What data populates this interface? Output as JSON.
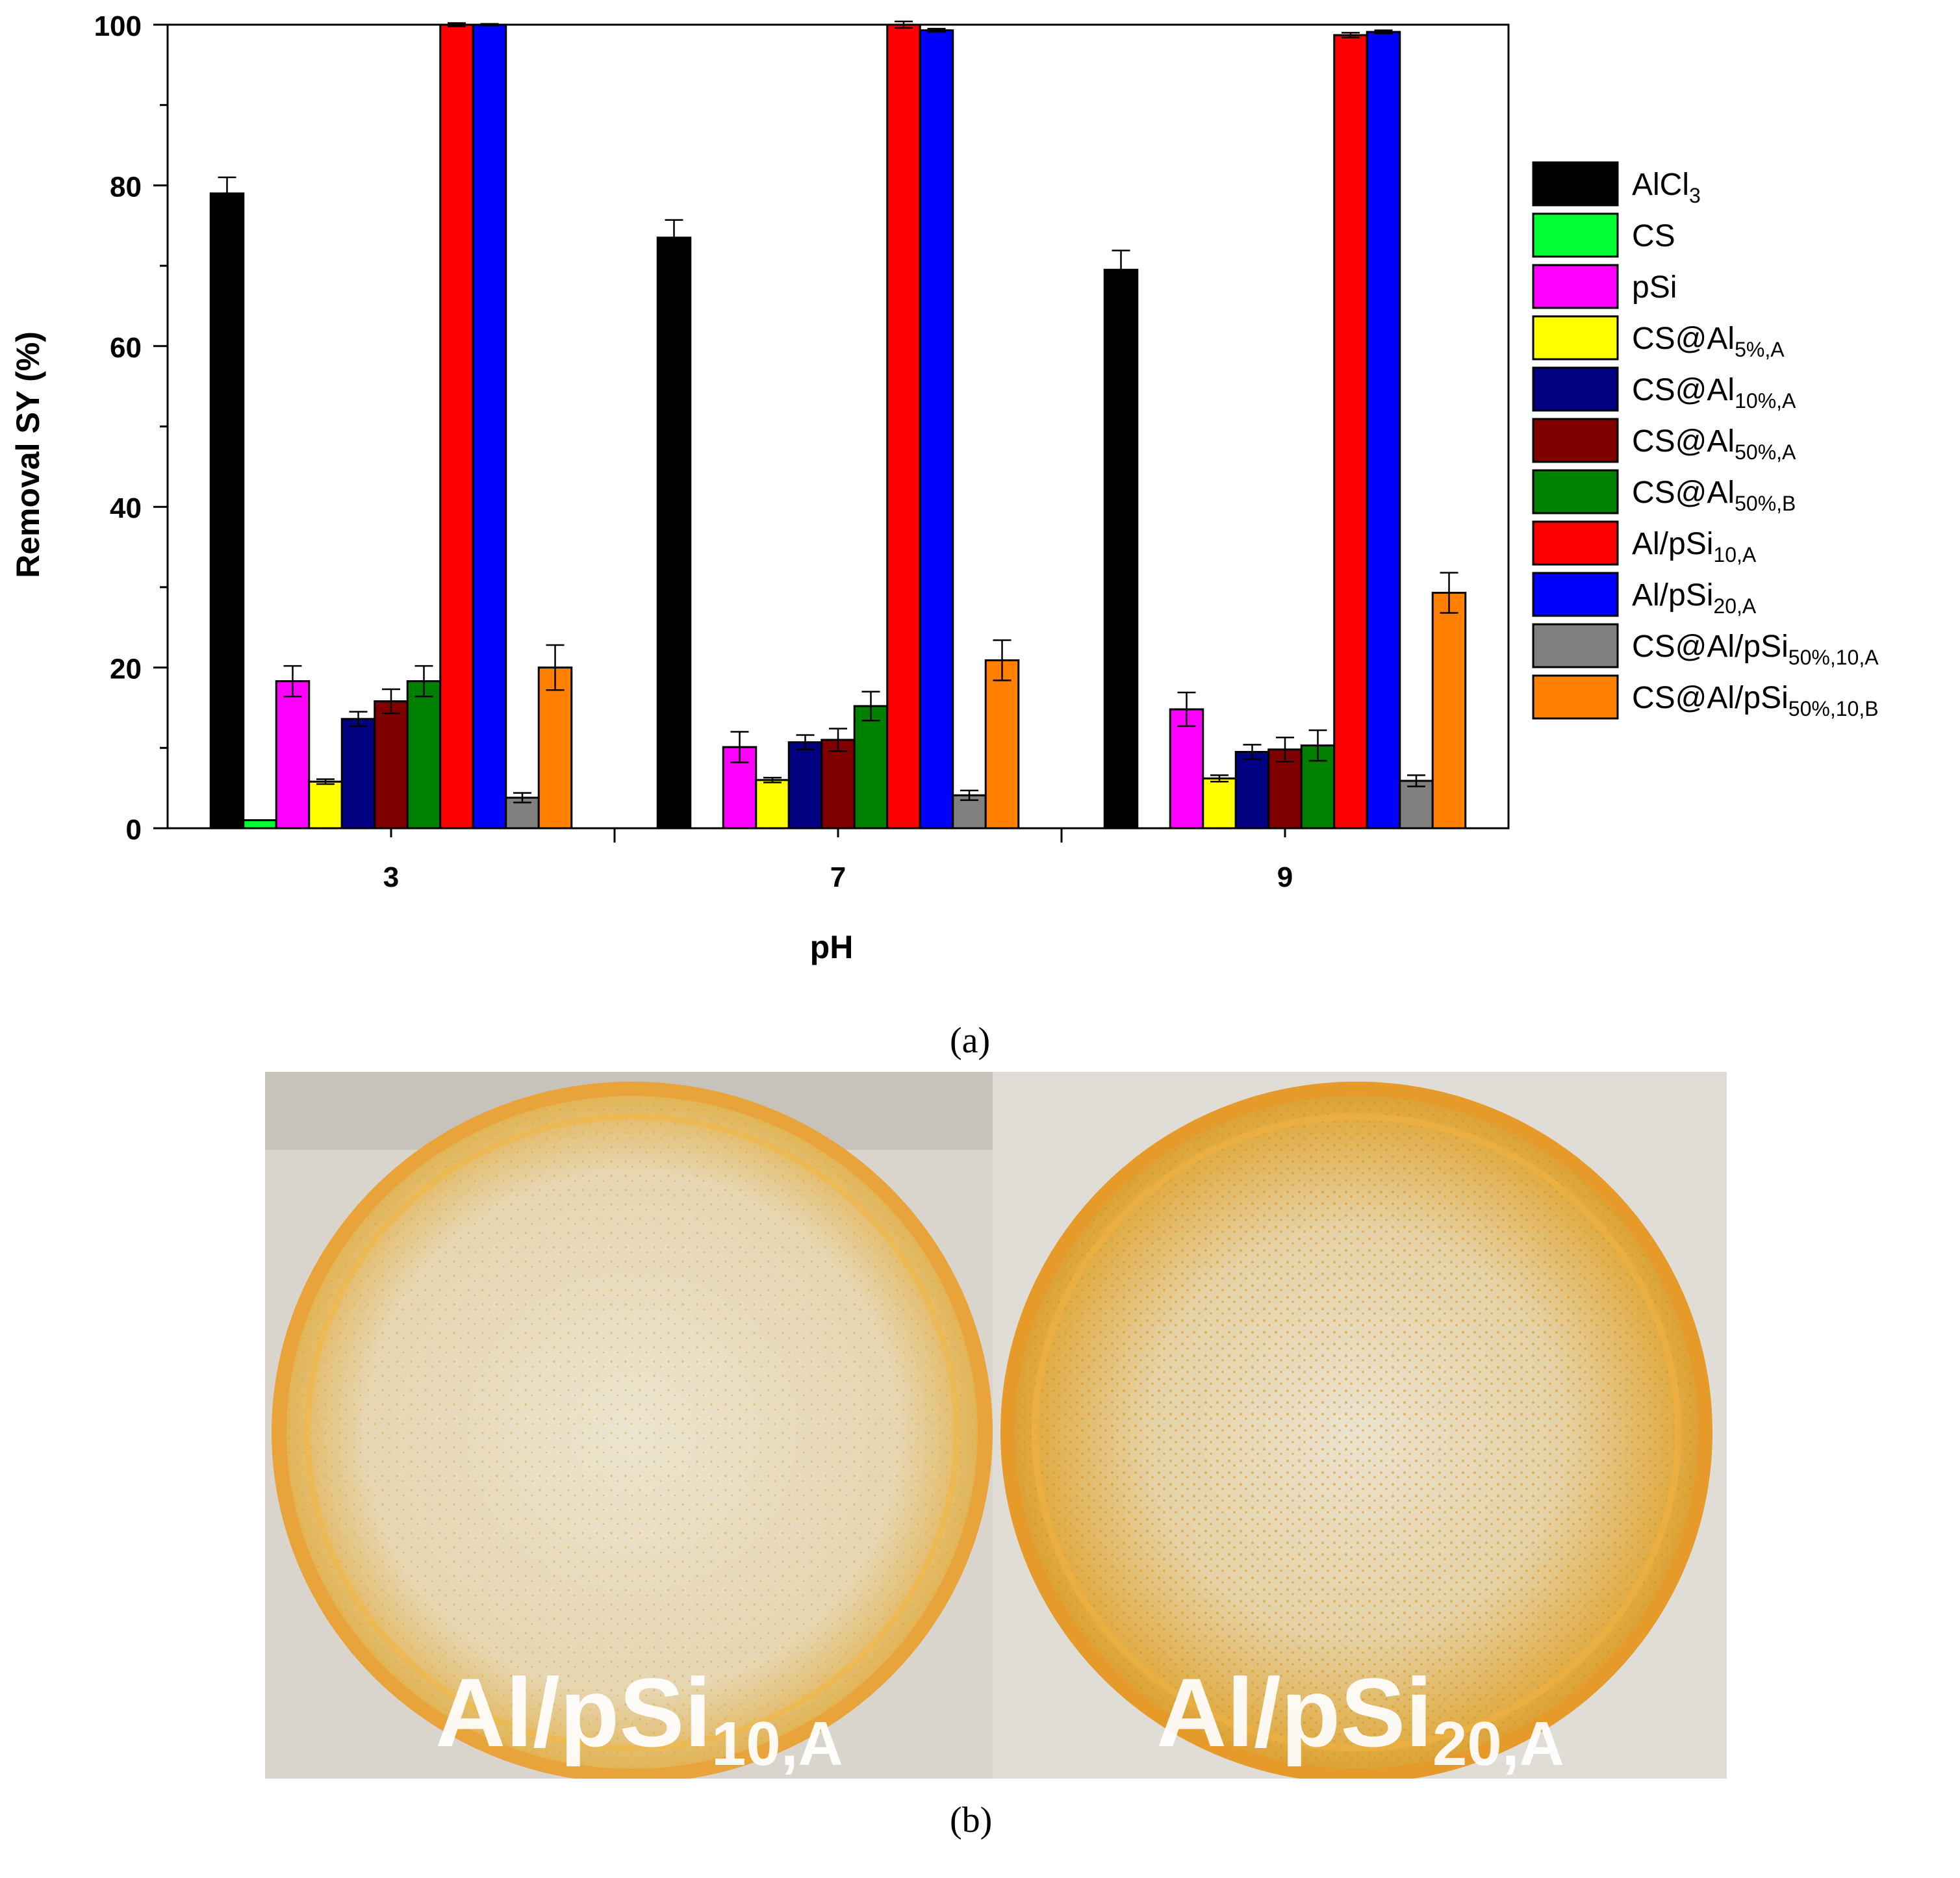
{
  "panel_a_label": "(a)",
  "panel_b_label": "(b)",
  "chart_data": {
    "type": "bar",
    "title": "",
    "xlabel": "pH",
    "ylabel": "Removal SY (%)",
    "ylim": [
      0,
      100
    ],
    "yticks": [
      0,
      20,
      40,
      60,
      80,
      100
    ],
    "categories": [
      "3",
      "7",
      "9"
    ],
    "legend_position": "right",
    "error_bars": true,
    "series": [
      {
        "name": "AlCl",
        "sub": "3",
        "color": "#000000",
        "values": [
          79,
          73.5,
          69.5
        ],
        "errors": [
          2,
          2.2,
          2.4
        ]
      },
      {
        "name": "CS",
        "sub": "",
        "color": "#00ff33",
        "values": [
          1,
          0,
          0
        ],
        "errors": [
          0,
          0,
          0
        ]
      },
      {
        "name": "pSi",
        "sub": "",
        "color": "#ff00ff",
        "values": [
          18.3,
          10.1,
          14.8
        ],
        "errors": [
          1.9,
          1.9,
          2.1
        ]
      },
      {
        "name": "CS@Al",
        "sub": "5%,A",
        "color": "#ffff00",
        "values": [
          5.8,
          6,
          6.2
        ],
        "errors": [
          0.3,
          0.3,
          0.4
        ]
      },
      {
        "name": "CS@Al",
        "sub": "10%,A",
        "color": "#000080",
        "values": [
          13.6,
          10.7,
          9.5
        ],
        "errors": [
          0.9,
          0.9,
          0.9
        ]
      },
      {
        "name": "CS@Al",
        "sub": "50%,A",
        "color": "#800000",
        "values": [
          15.8,
          11,
          9.8
        ],
        "errors": [
          1.5,
          1.4,
          1.5
        ]
      },
      {
        "name": "CS@Al",
        "sub": "50%,B",
        "color": "#008000",
        "values": [
          18.3,
          15.2,
          10.3
        ],
        "errors": [
          1.9,
          1.8,
          1.9
        ]
      },
      {
        "name": "Al/pSi",
        "sub": "10,A",
        "color": "#ff0000",
        "values": [
          100,
          100,
          98.7
        ],
        "errors": [
          0.2,
          0.4,
          0.3
        ]
      },
      {
        "name": "Al/pSi",
        "sub": "20,A",
        "color": "#0000ff",
        "values": [
          100,
          99.3,
          99.1
        ],
        "errors": [
          0.1,
          0.2,
          0.2
        ]
      },
      {
        "name": "CS@Al/pSi",
        "sub": "50%,10,A",
        "color": "#808080",
        "values": [
          3.8,
          4.1,
          5.9
        ],
        "errors": [
          0.6,
          0.6,
          0.7
        ]
      },
      {
        "name": "CS@Al/pSi",
        "sub": "50%,10,B",
        "color": "#ff8000",
        "values": [
          20,
          20.9,
          29.3
        ],
        "errors": [
          2.8,
          2.5,
          2.5
        ]
      }
    ]
  },
  "photos": [
    {
      "caption": "Al/pSi",
      "caption_sub": "10,A"
    },
    {
      "caption": "Al/pSi",
      "caption_sub": "20,A"
    }
  ]
}
